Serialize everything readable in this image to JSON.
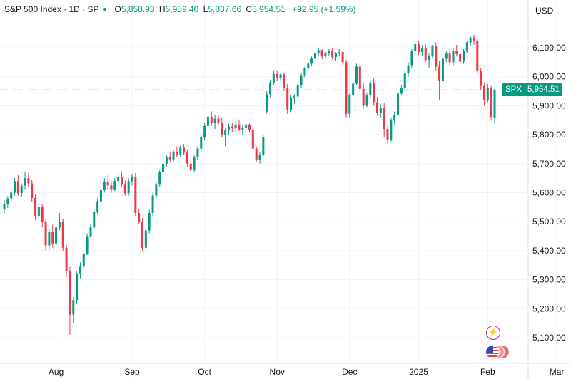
{
  "header": {
    "title": "S&P 500 Index · 1D · SP",
    "open_label": "O",
    "open": "5,858.93",
    "high_label": "H",
    "high": "5,959.40",
    "low_label": "L",
    "low": "5,837.66",
    "close_label": "C",
    "close": "5,954.51",
    "change": "+92.95 (+1.59%)"
  },
  "currency": "USD",
  "last_price_badge": {
    "symbol": "SPX",
    "value": "5,954.51"
  },
  "icons": {
    "flash": "flash-icon",
    "flags": "country-flags-icon"
  },
  "colors": {
    "up": "#089981",
    "down": "#f23645",
    "grid": "#f0f3fa",
    "last_line": "#089981"
  },
  "chart_data": {
    "type": "candlestick",
    "y_ticks": [
      "6,100.00",
      "6,000.00",
      "5,900.00",
      "5,800.00",
      "5,700.00",
      "5,600.00",
      "5,500.00",
      "5,400.00",
      "5,300.00",
      "5,200.00",
      "5,100.00"
    ],
    "y_tick_values": [
      6100,
      6000,
      5900,
      5800,
      5700,
      5600,
      5500,
      5400,
      5300,
      5200,
      5100
    ],
    "ylim": [
      5075,
      6180
    ],
    "x_ticks": [
      "Aug",
      "Sep",
      "Oct",
      "Nov",
      "Dec",
      "2025",
      "Feb",
      "Mar"
    ],
    "x_tick_index": [
      15,
      37,
      58,
      79,
      100,
      120,
      140,
      160
    ],
    "last_price": 5954.51,
    "candles": [
      [
        5542,
        5575,
        5528,
        5560
      ],
      [
        5560,
        5588,
        5548,
        5580
      ],
      [
        5580,
        5615,
        5570,
        5600
      ],
      [
        5600,
        5650,
        5590,
        5640
      ],
      [
        5640,
        5660,
        5590,
        5598
      ],
      [
        5598,
        5632,
        5585,
        5624
      ],
      [
        5624,
        5670,
        5612,
        5650
      ],
      [
        5650,
        5668,
        5620,
        5632
      ],
      [
        5632,
        5645,
        5570,
        5582
      ],
      [
        5582,
        5595,
        5505,
        5520
      ],
      [
        5520,
        5560,
        5510,
        5550
      ],
      [
        5550,
        5562,
        5480,
        5498
      ],
      [
        5498,
        5510,
        5400,
        5418
      ],
      [
        5418,
        5475,
        5402,
        5465
      ],
      [
        5465,
        5490,
        5410,
        5425
      ],
      [
        5425,
        5490,
        5415,
        5480
      ],
      [
        5480,
        5530,
        5470,
        5500
      ],
      [
        5500,
        5510,
        5400,
        5410
      ],
      [
        5410,
        5420,
        5310,
        5330
      ],
      [
        5330,
        5345,
        5110,
        5180
      ],
      [
        5180,
        5240,
        5150,
        5230
      ],
      [
        5230,
        5330,
        5215,
        5320
      ],
      [
        5320,
        5360,
        5305,
        5345
      ],
      [
        5345,
        5400,
        5335,
        5390
      ],
      [
        5390,
        5460,
        5385,
        5450
      ],
      [
        5450,
        5490,
        5445,
        5480
      ],
      [
        5480,
        5545,
        5470,
        5535
      ],
      [
        5535,
        5580,
        5525,
        5570
      ],
      [
        5570,
        5620,
        5560,
        5610
      ],
      [
        5610,
        5650,
        5600,
        5638
      ],
      [
        5638,
        5660,
        5610,
        5625
      ],
      [
        5625,
        5640,
        5600,
        5612
      ],
      [
        5612,
        5650,
        5605,
        5640
      ],
      [
        5640,
        5665,
        5630,
        5655
      ],
      [
        5655,
        5670,
        5620,
        5630
      ],
      [
        5630,
        5642,
        5590,
        5598
      ],
      [
        5598,
        5650,
        5590,
        5640
      ],
      [
        5640,
        5665,
        5625,
        5655
      ],
      [
        5655,
        5668,
        5520,
        5530
      ],
      [
        5530,
        5545,
        5490,
        5500
      ],
      [
        5500,
        5512,
        5400,
        5410
      ],
      [
        5410,
        5480,
        5402,
        5470
      ],
      [
        5470,
        5540,
        5460,
        5530
      ],
      [
        5530,
        5600,
        5520,
        5590
      ],
      [
        5590,
        5640,
        5580,
        5630
      ],
      [
        5630,
        5680,
        5620,
        5670
      ],
      [
        5670,
        5710,
        5660,
        5700
      ],
      [
        5700,
        5730,
        5690,
        5722
      ],
      [
        5722,
        5740,
        5705,
        5715
      ],
      [
        5715,
        5748,
        5708,
        5740
      ],
      [
        5740,
        5760,
        5722,
        5732
      ],
      [
        5732,
        5765,
        5725,
        5755
      ],
      [
        5755,
        5768,
        5730,
        5738
      ],
      [
        5738,
        5750,
        5690,
        5700
      ],
      [
        5700,
        5712,
        5672,
        5680
      ],
      [
        5680,
        5730,
        5672,
        5722
      ],
      [
        5722,
        5760,
        5712,
        5752
      ],
      [
        5752,
        5800,
        5742,
        5790
      ],
      [
        5790,
        5840,
        5780,
        5830
      ],
      [
        5830,
        5870,
        5820,
        5862
      ],
      [
        5862,
        5880,
        5830,
        5840
      ],
      [
        5840,
        5868,
        5820,
        5855
      ],
      [
        5855,
        5870,
        5830,
        5842
      ],
      [
        5842,
        5860,
        5790,
        5800
      ],
      [
        5800,
        5825,
        5760,
        5815
      ],
      [
        5815,
        5838,
        5800,
        5828
      ],
      [
        5828,
        5840,
        5810,
        5822
      ],
      [
        5822,
        5845,
        5810,
        5835
      ],
      [
        5835,
        5850,
        5812,
        5818
      ],
      [
        5818,
        5832,
        5800,
        5825
      ],
      [
        5825,
        5840,
        5815,
        5835
      ],
      [
        5835,
        5838,
        5810,
        5815
      ],
      [
        5815,
        5822,
        5740,
        5752
      ],
      [
        5752,
        5760,
        5705,
        5712
      ],
      [
        5712,
        5740,
        5700,
        5730
      ],
      [
        5730,
        5800,
        5722,
        5792
      ],
      [
        5880,
        5950,
        5872,
        5940
      ],
      [
        5940,
        5990,
        5930,
        5980
      ],
      [
        5980,
        6020,
        5970,
        6010
      ],
      [
        6010,
        6020,
        5985,
        5995
      ],
      [
        5995,
        6012,
        5988,
        6008
      ],
      [
        6008,
        6015,
        5950,
        5960
      ],
      [
        5960,
        5975,
        5872,
        5885
      ],
      [
        5885,
        5935,
        5878,
        5928
      ],
      [
        5928,
        5940,
        5905,
        5932
      ],
      [
        5932,
        5980,
        5925,
        5970
      ],
      [
        5970,
        6012,
        5962,
        6005
      ],
      [
        6005,
        6035,
        5998,
        6030
      ],
      [
        6030,
        6050,
        6020,
        6045
      ],
      [
        6045,
        6070,
        6038,
        6062
      ],
      [
        6062,
        6090,
        6055,
        6082
      ],
      [
        6082,
        6100,
        6070,
        6092
      ],
      [
        6092,
        6095,
        6060,
        6070
      ],
      [
        6070,
        6090,
        6062,
        6083
      ],
      [
        6083,
        6095,
        6072,
        6090
      ],
      [
        6090,
        6098,
        6060,
        6068
      ],
      [
        6068,
        6085,
        6055,
        6080
      ],
      [
        6080,
        6095,
        6070,
        6085
      ],
      [
        6085,
        6090,
        6040,
        6050
      ],
      [
        6050,
        6058,
        5860,
        5872
      ],
      [
        5872,
        5945,
        5860,
        5938
      ],
      [
        5938,
        5985,
        5930,
        5976
      ],
      [
        5976,
        6045,
        5970,
        6035
      ],
      [
        6035,
        6045,
        5950,
        5958
      ],
      [
        5958,
        5980,
        5890,
        5900
      ],
      [
        5900,
        5945,
        5895,
        5935
      ],
      [
        5935,
        5990,
        5928,
        5980
      ],
      [
        5980,
        5995,
        5900,
        5912
      ],
      [
        5912,
        5930,
        5865,
        5875
      ],
      [
        5875,
        5905,
        5860,
        5892
      ],
      [
        5892,
        5910,
        5790,
        5820
      ],
      [
        5820,
        5830,
        5770,
        5782
      ],
      [
        5782,
        5860,
        5776,
        5852
      ],
      [
        5852,
        5880,
        5835,
        5868
      ],
      [
        5868,
        5950,
        5860,
        5942
      ],
      [
        5942,
        5970,
        5935,
        5960
      ],
      [
        5960,
        6020,
        5952,
        6012
      ],
      [
        6012,
        6050,
        6000,
        6040
      ],
      [
        6040,
        6095,
        6030,
        6088
      ],
      [
        6088,
        6120,
        6078,
        6112
      ],
      [
        6112,
        6125,
        6075,
        6085
      ],
      [
        6085,
        6110,
        6070,
        6098
      ],
      [
        6098,
        6112,
        6050,
        6058
      ],
      [
        6058,
        6080,
        6030,
        6072
      ],
      [
        6072,
        6110,
        6062,
        6105
      ],
      [
        6105,
        6118,
        6020,
        6035
      ],
      [
        6035,
        6055,
        5920,
        5985
      ],
      [
        5985,
        6070,
        5978,
        6062
      ],
      [
        6062,
        6090,
        6050,
        6080
      ],
      [
        6080,
        6095,
        6040,
        6050
      ],
      [
        6050,
        6100,
        6038,
        6090
      ],
      [
        6090,
        6110,
        6070,
        6078
      ],
      [
        6078,
        6088,
        6040,
        6052
      ],
      [
        6052,
        6095,
        6045,
        6088
      ],
      [
        6088,
        6125,
        6080,
        6118
      ],
      [
        6118,
        6140,
        6105,
        6135
      ],
      [
        6135,
        6145,
        6110,
        6125
      ],
      [
        6125,
        6130,
        6010,
        6020
      ],
      [
        6020,
        6030,
        5955,
        5968
      ],
      [
        5968,
        5980,
        5900,
        5920
      ],
      [
        5920,
        5975,
        5912,
        5962
      ],
      [
        5962,
        5968,
        5850,
        5862
      ],
      [
        5858.93,
        5959.4,
        5837.66,
        5954.51
      ]
    ]
  }
}
